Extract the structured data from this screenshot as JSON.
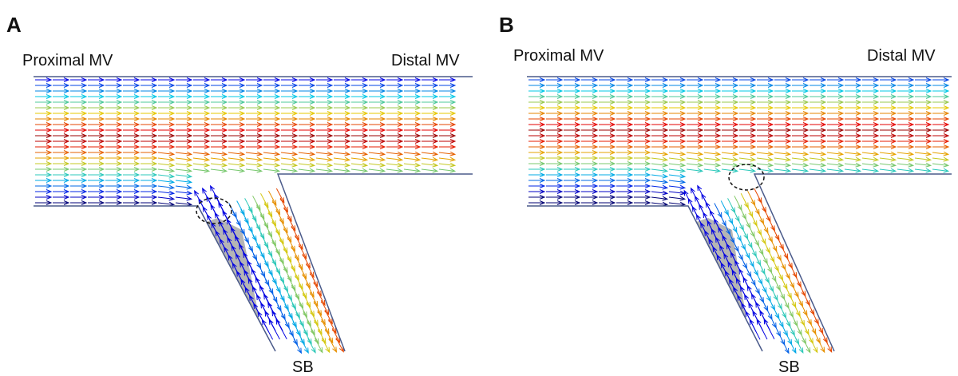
{
  "panels": [
    {
      "label": "A",
      "proximal": "Proximal MV",
      "distal": "Distal MV",
      "branch": "SB"
    },
    {
      "label": "B",
      "proximal": "Proximal MV",
      "distal": "Distal MV",
      "branch": "SB"
    }
  ]
}
